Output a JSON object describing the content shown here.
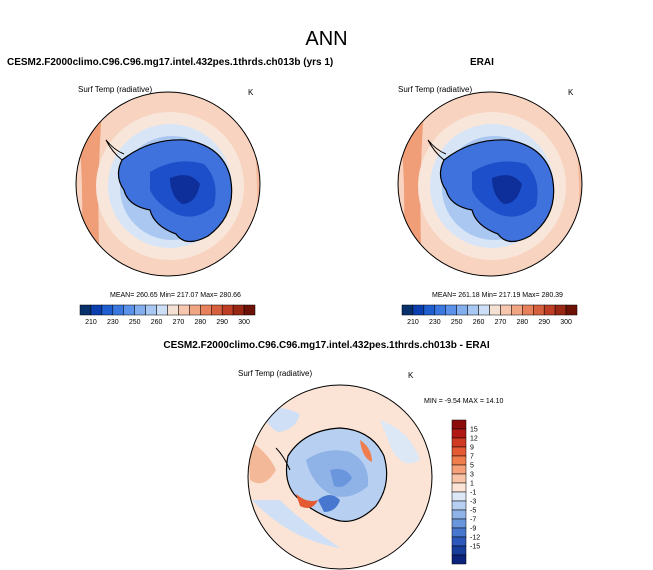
{
  "title": "ANN",
  "panels": {
    "left": {
      "title": "CESM2.F2000climo.C96.C96.mg17.intel.432pes.1thrds.ch013b (yrs 1)",
      "variable": "Surf Temp (radiative)",
      "units": "K",
      "stats": "MEAN= 260.65  Min= 217.07  Max= 280.66"
    },
    "right": {
      "title": "ERAI",
      "variable": "Surf Temp (radiative)",
      "units": "K",
      "stats": "MEAN= 261.18  Min= 217.19  Max= 280.39"
    },
    "diff": {
      "title": "CESM2.F2000climo.C96.C96.mg17.intel.432pes.1thrds.ch013b - ERAI",
      "variable": "Surf Temp (radiative)",
      "units": "K",
      "stats": "MIN = -9.54 MAX = 14.10"
    }
  },
  "chart_data": [
    {
      "type": "heatmap",
      "name": "model",
      "colorbar_ticks": [
        "210",
        "230",
        "250",
        "260",
        "270",
        "280",
        "290",
        "300"
      ],
      "colors": [
        "#08306b",
        "#0b3fb0",
        "#1f5ed1",
        "#3a78e0",
        "#5b91e8",
        "#82aeee",
        "#a8c8f3",
        "#cddff7",
        "#f5e1d4",
        "#f6c6ae",
        "#f0a583",
        "#e6815c",
        "#d65f3e",
        "#bd3e25",
        "#982714",
        "#6d1206"
      ],
      "mean": 260.65,
      "min": 217.07,
      "max": 280.66
    },
    {
      "type": "heatmap",
      "name": "obs",
      "colorbar_ticks": [
        "210",
        "230",
        "250",
        "260",
        "270",
        "280",
        "290",
        "300"
      ],
      "colors": [
        "#08306b",
        "#0b3fb0",
        "#1f5ed1",
        "#3a78e0",
        "#5b91e8",
        "#82aeee",
        "#a8c8f3",
        "#cddff7",
        "#f5e1d4",
        "#f6c6ae",
        "#f0a583",
        "#e6815c",
        "#d65f3e",
        "#bd3e25",
        "#982714",
        "#6d1206"
      ],
      "mean": 261.18,
      "min": 217.19,
      "max": 280.39
    },
    {
      "type": "heatmap",
      "name": "difference",
      "colorbar_ticks": [
        "15",
        "12",
        "9",
        "7",
        "5",
        "3",
        "1",
        "-1",
        "-3",
        "-5",
        "-7",
        "-9",
        "-12",
        "-15"
      ],
      "colors": [
        "#8c0c0c",
        "#b11a14",
        "#cf3a22",
        "#e35a33",
        "#f07d4d",
        "#f6a07a",
        "#f8c4a8",
        "#fbe4d6",
        "#dde8f6",
        "#b7cff0",
        "#8fb3e7",
        "#6a96dd",
        "#4777cf",
        "#2c58bc",
        "#173d9c",
        "#0b237a"
      ],
      "min": -9.54,
      "max": 14.1
    }
  ]
}
